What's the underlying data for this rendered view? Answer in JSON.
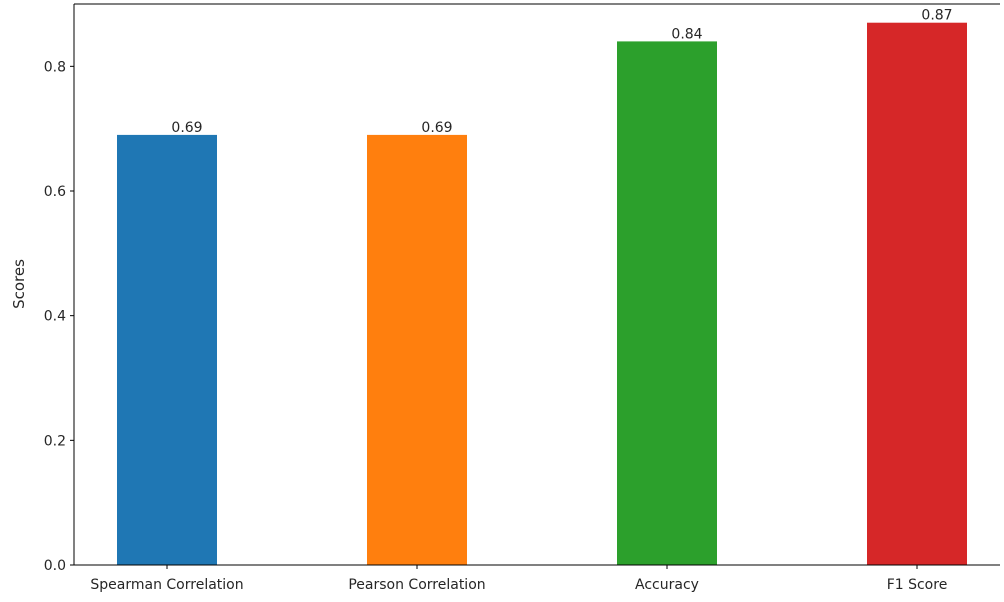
{
  "chart_data": {
    "type": "bar",
    "title": "",
    "xlabel": "",
    "ylabel": "Scores",
    "categories": [
      "Spearman Correlation",
      "Pearson Correlation",
      "Accuracy",
      "F1 Score"
    ],
    "values": [
      0.69,
      0.69,
      0.84,
      0.87
    ],
    "value_labels": [
      "0.69",
      "0.69",
      "0.84",
      "0.87"
    ],
    "colors": [
      "#1f77b4",
      "#ff7f0e",
      "#2ca02c",
      "#d62728"
    ],
    "ylim": [
      0,
      0.9
    ],
    "yticks": [
      0.0,
      0.2,
      0.4,
      0.6,
      0.8
    ],
    "ytick_labels": [
      "0.0",
      "0.2",
      "0.4",
      "0.6",
      "0.8"
    ],
    "grid": false,
    "legend": "none"
  }
}
